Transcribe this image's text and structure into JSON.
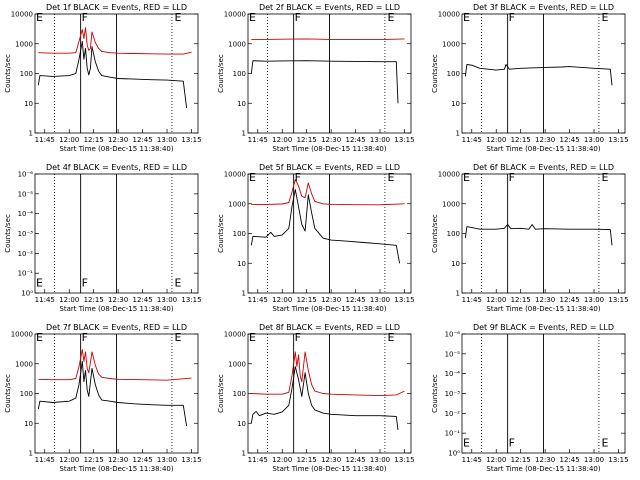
{
  "chart_data": [
    {
      "panel": "1f",
      "type": "line",
      "title": "Det 1f BLACK = Events, RED = LLD",
      "xlabel": "Start Time (08-Dec-15 11:38:40)",
      "ylabel": "Counts/sec",
      "xticks": [
        "11:45",
        "12:00",
        "12:15",
        "12:30",
        "12:45",
        "13:00",
        "13:15"
      ],
      "yscale": "log",
      "ylim": [
        1,
        10000
      ],
      "yticks": [
        "1",
        "10",
        "100",
        "1000",
        "10000"
      ],
      "grid": "dotted-vertical",
      "vlines_solid": [
        "12:07",
        "12:29"
      ],
      "vlines_dotted": [
        "11:51",
        "13:03"
      ],
      "markers": [
        {
          "text": "E",
          "x": "11:39",
          "y": 8000
        },
        {
          "text": "F",
          "x": "12:07",
          "y": 8000
        },
        {
          "text": "E",
          "x": "13:04",
          "y": 8000
        }
      ],
      "series": [
        {
          "color": "#cc0000",
          "x": [
            "11:41",
            "11:50",
            "12:00",
            "12:04",
            "12:06",
            "12:08",
            "12:09",
            "12:10",
            "12:11",
            "12:12",
            "12:13",
            "12:14",
            "12:16",
            "12:18",
            "12:20",
            "12:25",
            "12:30",
            "12:40",
            "12:50",
            "13:00",
            "13:10",
            "13:15"
          ],
          "y": [
            500,
            480,
            480,
            500,
            1200,
            3000,
            1500,
            3500,
            900,
            600,
            700,
            2500,
            1100,
            700,
            550,
            500,
            480,
            470,
            460,
            450,
            450,
            520
          ]
        },
        {
          "color": "#000000",
          "x": [
            "11:41",
            "11:42",
            "11:50",
            "12:00",
            "12:04",
            "12:06",
            "12:08",
            "12:09",
            "12:10",
            "12:11",
            "12:12",
            "12:13",
            "12:14",
            "12:16",
            "12:18",
            "12:20",
            "12:25",
            "12:30",
            "12:40",
            "12:50",
            "13:00",
            "13:10",
            "13:12"
          ],
          "y": [
            40,
            85,
            80,
            85,
            100,
            300,
            1200,
            300,
            700,
            150,
            90,
            150,
            800,
            250,
            120,
            85,
            75,
            68,
            65,
            62,
            60,
            55,
            7
          ]
        }
      ]
    },
    {
      "panel": "2f",
      "type": "line",
      "title": "Det 2f BLACK = Events, RED = LLD",
      "xlabel": "Start Time (08-Dec-15 11:38:40)",
      "ylabel": "Counts/sec",
      "xticks": [
        "11:45",
        "12:00",
        "12:15",
        "12:30",
        "12:45",
        "13:00",
        "13:15"
      ],
      "yscale": "log",
      "ylim": [
        1,
        10000
      ],
      "yticks": [
        "1",
        "10",
        "100",
        "1000",
        "10000"
      ],
      "grid": "dotted-vertical",
      "vlines_solid": [
        "12:07",
        "12:29"
      ],
      "vlines_dotted": [
        "11:51",
        "13:03"
      ],
      "markers": [
        {
          "text": "E",
          "x": "11:39",
          "y": 8000
        },
        {
          "text": "F",
          "x": "12:07",
          "y": 8000
        },
        {
          "text": "E",
          "x": "13:04",
          "y": 8000
        }
      ],
      "series": [
        {
          "color": "#cc0000",
          "x": [
            "11:41",
            "11:50",
            "12:00",
            "12:15",
            "12:30",
            "12:45",
            "13:00",
            "13:15"
          ],
          "y": [
            1400,
            1400,
            1420,
            1450,
            1400,
            1380,
            1380,
            1450
          ]
        },
        {
          "color": "#000000",
          "x": [
            "11:41",
            "11:42",
            "11:50",
            "12:00",
            "12:15",
            "12:30",
            "12:45",
            "13:00",
            "13:10",
            "13:11"
          ],
          "y": [
            100,
            270,
            260,
            265,
            270,
            260,
            255,
            250,
            250,
            10
          ]
        }
      ]
    },
    {
      "panel": "3f",
      "type": "line",
      "title": "Det 3f BLACK = Events, RED = LLD",
      "xlabel": "Start Time (08-Dec-15 11:38:40)",
      "ylabel": "Counts/sec",
      "xticks": [
        "11:45",
        "12:00",
        "12:15",
        "12:30",
        "12:45",
        "13:00",
        "13:15"
      ],
      "yscale": "log",
      "ylim": [
        1,
        10000
      ],
      "yticks": [
        "1",
        "10",
        "100",
        "1000",
        "10000"
      ],
      "grid": "dotted-vertical",
      "vlines_solid": [
        "12:07",
        "12:29"
      ],
      "vlines_dotted": [
        "11:51",
        "13:03"
      ],
      "markers": [
        {
          "text": "E",
          "x": "11:39",
          "y": 8000
        },
        {
          "text": "F",
          "x": "12:07",
          "y": 8000
        },
        {
          "text": "E",
          "x": "13:04",
          "y": 8000
        }
      ],
      "series": [
        {
          "color": "#000000",
          "x": [
            "11:41",
            "11:42",
            "11:45",
            "11:50",
            "12:00",
            "12:05",
            "12:06",
            "12:08",
            "12:15",
            "12:30",
            "12:40",
            "12:45",
            "13:00",
            "13:10",
            "13:11"
          ],
          "y": [
            80,
            200,
            190,
            150,
            130,
            140,
            200,
            140,
            150,
            160,
            165,
            170,
            150,
            140,
            40
          ]
        }
      ]
    },
    {
      "panel": "4f",
      "type": "line",
      "title": "Det 4f BLACK = Events, RED = LLD",
      "xlabel": "Start Time (08-Dec-15 11:38:40)",
      "ylabel": "Counts/sec",
      "xticks": [
        "11:45",
        "12:00",
        "12:15",
        "12:30",
        "12:45",
        "13:00",
        "13:15"
      ],
      "yscale": "log",
      "ylim": [
        1,
        1e-06
      ],
      "yticks": [
        "10⁰",
        "10⁻¹",
        "10⁻²",
        "10⁻³",
        "10⁻⁴",
        "10⁻⁵",
        "10⁻⁶"
      ],
      "grid": "dotted-vertical",
      "vlines_solid": [
        "12:07",
        "12:29"
      ],
      "vlines_dotted": [
        "11:51",
        "13:03"
      ],
      "markers": [
        {
          "text": "E",
          "x": "11:39",
          "y": 0.3
        },
        {
          "text": "F",
          "x": "12:07",
          "y": 0.3
        },
        {
          "text": "E",
          "x": "13:04",
          "y": 0.3
        }
      ],
      "series": []
    },
    {
      "panel": "5f",
      "type": "line",
      "title": "Det 5f BLACK = Events, RED = LLD",
      "xlabel": "Start Time (08-Dec-15 11:38:40)",
      "ylabel": "Counts/sec",
      "xticks": [
        "11:45",
        "12:00",
        "12:15",
        "12:30",
        "12:45",
        "13:00",
        "13:15"
      ],
      "yscale": "log",
      "ylim": [
        1,
        10000
      ],
      "yticks": [
        "1",
        "10",
        "100",
        "1000",
        "10000"
      ],
      "grid": "dotted-vertical",
      "vlines_solid": [
        "12:07",
        "12:29"
      ],
      "vlines_dotted": [
        "11:51",
        "13:03"
      ],
      "markers": [
        {
          "text": "E",
          "x": "11:39",
          "y": 8000
        },
        {
          "text": "F",
          "x": "12:07",
          "y": 8000
        },
        {
          "text": "E",
          "x": "13:04",
          "y": 8000
        }
      ],
      "series": [
        {
          "color": "#cc0000",
          "x": [
            "11:41",
            "11:50",
            "12:00",
            "12:04",
            "12:06",
            "12:08",
            "12:10",
            "12:12",
            "12:14",
            "12:16",
            "12:18",
            "12:20",
            "12:25",
            "12:30",
            "12:45",
            "13:00",
            "13:15"
          ],
          "y": [
            950,
            950,
            980,
            1100,
            2500,
            6500,
            4000,
            1800,
            1600,
            5000,
            2200,
            1200,
            1000,
            950,
            930,
            920,
            1000
          ]
        },
        {
          "color": "#000000",
          "x": [
            "11:41",
            "11:42",
            "11:50",
            "11:53",
            "11:55",
            "12:00",
            "12:04",
            "12:06",
            "12:08",
            "12:10",
            "12:12",
            "12:14",
            "12:16",
            "12:18",
            "12:20",
            "12:25",
            "12:30",
            "12:40",
            "12:50",
            "13:00",
            "13:10",
            "13:12"
          ],
          "y": [
            40,
            80,
            75,
            110,
            80,
            90,
            150,
            800,
            3000,
            800,
            200,
            120,
            2000,
            500,
            150,
            70,
            60,
            55,
            50,
            45,
            40,
            10
          ]
        }
      ]
    },
    {
      "panel": "6f",
      "type": "line",
      "title": "Det 6f BLACK = Events, RED = LLD",
      "xlabel": "Start Time (08-Dec-15 11:38:40)",
      "ylabel": "Counts/sec",
      "xticks": [
        "11:45",
        "12:00",
        "12:15",
        "12:30",
        "12:45",
        "13:00",
        "13:15"
      ],
      "yscale": "log",
      "ylim": [
        1,
        10000
      ],
      "yticks": [
        "1",
        "10",
        "100",
        "1000",
        "10000"
      ],
      "grid": "dotted-vertical",
      "vlines_solid": [
        "12:07",
        "12:29"
      ],
      "vlines_dotted": [
        "11:51",
        "13:03"
      ],
      "markers": [
        {
          "text": "E",
          "x": "11:39",
          "y": 8000
        },
        {
          "text": "F",
          "x": "12:07",
          "y": 8000
        },
        {
          "text": "E",
          "x": "13:04",
          "y": 8000
        }
      ],
      "series": [
        {
          "color": "#000000",
          "x": [
            "11:41",
            "11:42",
            "11:50",
            "12:00",
            "12:05",
            "12:07",
            "12:09",
            "12:15",
            "12:20",
            "12:22",
            "12:24",
            "12:30",
            "12:45",
            "13:00",
            "13:10",
            "13:11"
          ],
          "y": [
            70,
            170,
            140,
            140,
            150,
            200,
            145,
            150,
            140,
            200,
            140,
            145,
            140,
            140,
            135,
            40
          ]
        }
      ]
    },
    {
      "panel": "7f",
      "type": "line",
      "title": "Det 7f BLACK = Events, RED = LLD",
      "xlabel": "Start Time (08-Dec-15 11:38:40)",
      "ylabel": "Counts/sec",
      "xticks": [
        "11:45",
        "12:00",
        "12:15",
        "12:30",
        "12:45",
        "13:00",
        "13:15"
      ],
      "yscale": "log",
      "ylim": [
        1,
        10000
      ],
      "yticks": [
        "1",
        "10",
        "100",
        "1000",
        "10000"
      ],
      "grid": "dotted-vertical",
      "vlines_solid": [
        "12:07",
        "12:29"
      ],
      "vlines_dotted": [
        "11:51",
        "13:03"
      ],
      "markers": [
        {
          "text": "E",
          "x": "11:39",
          "y": 8000
        },
        {
          "text": "F",
          "x": "12:07",
          "y": 8000
        },
        {
          "text": "E",
          "x": "13:04",
          "y": 8000
        }
      ],
      "series": [
        {
          "color": "#cc0000",
          "x": [
            "11:41",
            "11:50",
            "12:00",
            "12:04",
            "12:06",
            "12:08",
            "12:09",
            "12:10",
            "12:11",
            "12:12",
            "12:14",
            "12:16",
            "12:18",
            "12:20",
            "12:25",
            "12:30",
            "12:45",
            "13:00",
            "13:15"
          ],
          "y": [
            300,
            290,
            290,
            320,
            800,
            3000,
            1200,
            2500,
            700,
            500,
            2500,
            900,
            450,
            350,
            320,
            300,
            290,
            280,
            330
          ]
        },
        {
          "color": "#000000",
          "x": [
            "11:41",
            "11:42",
            "11:50",
            "12:00",
            "12:04",
            "12:06",
            "12:08",
            "12:09",
            "12:10",
            "12:11",
            "12:12",
            "12:14",
            "12:16",
            "12:18",
            "12:20",
            "12:25",
            "12:30",
            "12:40",
            "12:50",
            "13:00",
            "13:10",
            "13:12"
          ],
          "y": [
            30,
            55,
            50,
            55,
            70,
            200,
            1200,
            250,
            600,
            130,
            80,
            700,
            200,
            90,
            60,
            55,
            50,
            45,
            42,
            40,
            40,
            8
          ]
        }
      ]
    },
    {
      "panel": "8f",
      "type": "line",
      "title": "Det 8f BLACK = Events, RED = LLD",
      "xlabel": "Start Time (08-Dec-15 11:38:40)",
      "ylabel": "Counts/sec",
      "xticks": [
        "11:45",
        "12:00",
        "12:15",
        "12:30",
        "12:45",
        "13:00",
        "13:15"
      ],
      "yscale": "log",
      "ylim": [
        1,
        10000
      ],
      "yticks": [
        "1",
        "10",
        "100",
        "1000",
        "10000"
      ],
      "grid": "dotted-vertical",
      "vlines_solid": [
        "12:07",
        "12:29"
      ],
      "vlines_dotted": [
        "11:51",
        "13:03"
      ],
      "markers": [
        {
          "text": "E",
          "x": "11:39",
          "y": 8000
        },
        {
          "text": "F",
          "x": "12:07",
          "y": 8000
        },
        {
          "text": "E",
          "x": "13:04",
          "y": 8000
        }
      ],
      "series": [
        {
          "color": "#cc0000",
          "x": [
            "11:41",
            "11:50",
            "12:00",
            "12:04",
            "12:06",
            "12:08",
            "12:09",
            "12:10",
            "12:11",
            "12:12",
            "12:14",
            "12:16",
            "12:18",
            "12:20",
            "12:25",
            "12:30",
            "12:45",
            "13:00",
            "13:10",
            "13:15"
          ],
          "y": [
            100,
            95,
            95,
            110,
            400,
            2500,
            800,
            2000,
            400,
            250,
            2500,
            600,
            200,
            120,
            100,
            95,
            90,
            85,
            90,
            120
          ]
        },
        {
          "color": "#000000",
          "x": [
            "11:41",
            "11:42",
            "11:44",
            "11:46",
            "11:50",
            "11:55",
            "12:00",
            "12:04",
            "12:06",
            "12:08",
            "12:10",
            "12:12",
            "12:14",
            "12:16",
            "12:18",
            "12:20",
            "12:25",
            "12:30",
            "12:45",
            "13:00",
            "13:10",
            "13:11"
          ],
          "y": [
            10,
            20,
            25,
            18,
            22,
            20,
            24,
            40,
            150,
            800,
            300,
            80,
            500,
            100,
            40,
            28,
            22,
            20,
            18,
            18,
            17,
            6
          ]
        }
      ]
    },
    {
      "panel": "9f",
      "type": "line",
      "title": "Det 9f BLACK = Events, RED = LLD",
      "xlabel": "Start Time (08-Dec-15 11:38:40)",
      "ylabel": "Counts/sec",
      "xticks": [
        "11:45",
        "12:00",
        "12:15",
        "12:30",
        "12:45",
        "13:00",
        "13:15"
      ],
      "yscale": "log",
      "ylim": [
        1,
        1e-06
      ],
      "yticks": [
        "10⁰",
        "10⁻¹",
        "10⁻²",
        "10⁻³",
        "10⁻⁴",
        "10⁻⁵",
        "10⁻⁶"
      ],
      "grid": "dotted-vertical",
      "vlines_solid": [
        "12:07",
        "12:29"
      ],
      "vlines_dotted": [
        "11:51",
        "13:03"
      ],
      "markers": [
        {
          "text": "E",
          "x": "11:39",
          "y": 0.3
        },
        {
          "text": "F",
          "x": "12:07",
          "y": 0.3
        },
        {
          "text": "E",
          "x": "13:04",
          "y": 0.3
        }
      ],
      "series": []
    }
  ]
}
